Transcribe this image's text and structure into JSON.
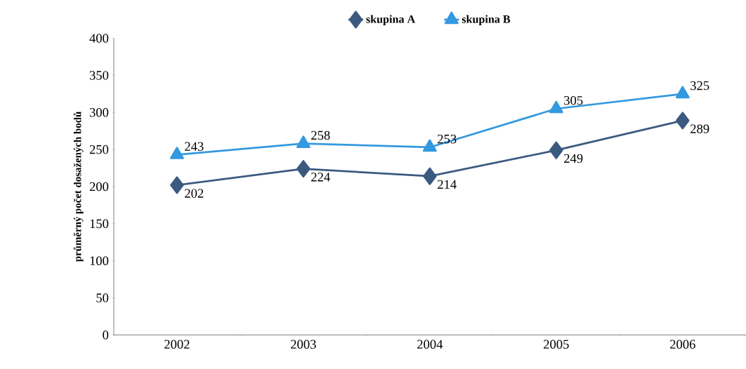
{
  "chart_data": {
    "type": "line",
    "ylabel": "průměrný počet dosažených bodů",
    "categories": [
      "2002",
      "2003",
      "2004",
      "2005",
      "2006"
    ],
    "series": [
      {
        "name": "skupina A",
        "color": "#3b5a80",
        "marker": "diamond",
        "values": [
          202,
          224,
          214,
          249,
          289
        ]
      },
      {
        "name": "skupina B",
        "color": "#3399e0",
        "marker": "triangle",
        "values": [
          243,
          258,
          253,
          305,
          325
        ]
      }
    ],
    "ylim": [
      0,
      400
    ],
    "yticks": [
      0,
      50,
      100,
      150,
      200,
      250,
      300,
      350,
      400
    ],
    "data_labels": true,
    "legend": "top",
    "grid": false
  }
}
